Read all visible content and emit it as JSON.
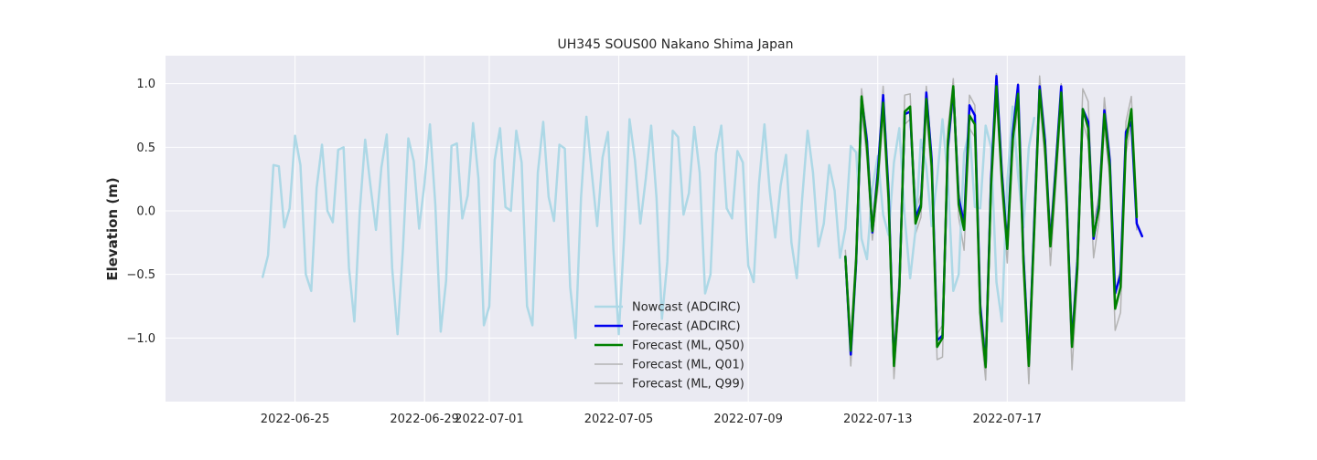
{
  "chart_data": {
    "type": "line",
    "title": "UH345 SOUS00 Nakano Shima Japan",
    "xlabel": "",
    "ylabel": "Elevation (m)",
    "xlim": [
      "2022-06-21T00:00",
      "2022-07-22T12:00"
    ],
    "ylim": [
      -1.5,
      1.22
    ],
    "x_ticks": [
      "2022-06-25",
      "2022-06-29",
      "2022-07-01",
      "2022-07-05",
      "2022-07-09",
      "2022-07-13",
      "2022-07-17"
    ],
    "y_ticks": [
      1.0,
      0.5,
      0.0,
      -0.5,
      -1.0
    ],
    "y_tick_labels": [
      "1.0",
      "0.5",
      "0.0",
      "−0.5",
      "−1.0"
    ],
    "grid": true,
    "legend_position": "center-bottom",
    "series": [
      {
        "name": "Nowcast (ADCIRC)",
        "color": "#add8e6",
        "start": "2022-06-24T00:00",
        "step_hours": 4,
        "values": [
          -0.52,
          -0.35,
          0.36,
          0.35,
          -0.13,
          0.02,
          0.59,
          0.36,
          -0.5,
          -0.63,
          0.18,
          0.52,
          0.0,
          -0.09,
          0.48,
          0.5,
          -0.45,
          -0.87,
          0.0,
          0.56,
          0.19,
          -0.15,
          0.34,
          0.6,
          -0.45,
          -0.97,
          -0.3,
          0.57,
          0.39,
          -0.14,
          0.22,
          0.68,
          0.05,
          -0.95,
          -0.55,
          0.51,
          0.53,
          -0.06,
          0.12,
          0.69,
          0.25,
          -0.9,
          -0.75,
          0.4,
          0.65,
          0.03,
          0.0,
          0.63,
          0.38,
          -0.75,
          -0.9,
          0.3,
          0.7,
          0.11,
          -0.08,
          0.52,
          0.49,
          -0.6,
          -1.0,
          0.1,
          0.74,
          0.3,
          -0.12,
          0.42,
          0.62,
          -0.3,
          -0.97,
          -0.2,
          0.72,
          0.4,
          -0.1,
          0.25,
          0.67,
          0.1,
          -0.85,
          -0.4,
          0.63,
          0.58,
          -0.03,
          0.14,
          0.66,
          0.3,
          -0.65,
          -0.5,
          0.45,
          0.67,
          0.02,
          -0.06,
          0.47,
          0.38,
          -0.43,
          -0.56,
          0.22,
          0.68,
          0.15,
          -0.21,
          0.2,
          0.44,
          -0.25,
          -0.53,
          0.1,
          0.63,
          0.3,
          -0.28,
          -0.1,
          0.36,
          0.16,
          -0.37,
          -0.14,
          0.51,
          0.46,
          -0.22,
          -0.38,
          0.18,
          0.43,
          -0.03,
          -0.19,
          0.38,
          0.65,
          -0.05,
          -0.53,
          -0.15,
          0.56,
          0.35,
          -0.12,
          0.25,
          0.72,
          0.25,
          -0.63,
          -0.5,
          0.45,
          0.64,
          0.03,
          0.02,
          0.67,
          0.5,
          -0.56,
          -0.87,
          0.22,
          0.82,
          0.28,
          -0.13,
          0.5,
          0.73
        ]
      },
      {
        "name": "Forecast (ADCIRC)",
        "color": "#0000ee",
        "start": "2022-07-12T00:00",
        "step_hours": 4,
        "values": [
          -0.36,
          -1.13,
          -0.4,
          0.88,
          0.55,
          -0.17,
          0.3,
          0.91,
          0.15,
          -1.2,
          -0.6,
          0.76,
          0.78,
          -0.05,
          0.05,
          0.93,
          0.4,
          -1.02,
          -0.98,
          0.5,
          0.96,
          0.1,
          -0.1,
          0.83,
          0.75,
          -0.75,
          -1.22,
          0.25,
          1.06,
          0.3,
          -0.28,
          0.6,
          0.99,
          -0.35,
          -1.2,
          -0.1,
          0.98,
          0.55,
          -0.26,
          0.35,
          0.98,
          0.1,
          -1.05,
          -0.4,
          0.8,
          0.7,
          -0.22,
          0.05,
          0.79,
          0.4,
          -0.65,
          -0.5,
          0.62,
          0.7,
          -0.1,
          -0.2
        ]
      },
      {
        "name": "Forecast (ML, Q50)",
        "color": "#008000",
        "start": "2022-07-12T00:00",
        "step_hours": 4,
        "values": [
          -0.36,
          -1.1,
          -0.38,
          0.9,
          0.5,
          -0.16,
          0.25,
          0.85,
          0.1,
          -1.22,
          -0.62,
          0.78,
          0.82,
          -0.1,
          0.03,
          0.88,
          0.35,
          -1.07,
          -1.0,
          0.55,
          0.98,
          0.05,
          -0.15,
          0.75,
          0.68,
          -0.8,
          -1.23,
          0.2,
          0.98,
          0.25,
          -0.3,
          0.55,
          0.92,
          -0.4,
          -1.22,
          -0.15,
          0.95,
          0.5,
          -0.28,
          0.3,
          0.93,
          0.05,
          -1.07,
          -0.45,
          0.8,
          0.65,
          -0.2,
          0.02,
          0.76,
          0.35,
          -0.77,
          -0.6,
          0.55,
          0.8,
          -0.05
        ]
      },
      {
        "name": "Forecast (ML, Q01)",
        "color": "#b3b3b3",
        "start": "2022-07-12T00:00",
        "step_hours": 4,
        "values": [
          -0.42,
          -1.22,
          -0.48,
          0.8,
          0.4,
          -0.23,
          0.15,
          0.75,
          0.0,
          -1.32,
          -0.72,
          0.68,
          0.72,
          -0.18,
          -0.05,
          0.78,
          0.25,
          -1.17,
          -1.15,
          0.45,
          0.88,
          -0.05,
          -0.31,
          0.65,
          0.58,
          -0.9,
          -1.33,
          0.1,
          0.88,
          0.15,
          -0.41,
          0.45,
          0.82,
          -0.5,
          -1.36,
          -0.25,
          0.85,
          0.4,
          -0.43,
          0.2,
          0.83,
          -0.05,
          -1.25,
          -0.55,
          0.7,
          0.55,
          -0.37,
          -0.08,
          0.66,
          0.25,
          -0.94,
          -0.8,
          0.45,
          0.7,
          -0.15
        ]
      },
      {
        "name": "Forecast (ML, Q99)",
        "color": "#b3b3b3",
        "start": "2022-07-12T00:00",
        "step_hours": 4,
        "values": [
          -0.31,
          -1.0,
          -0.28,
          0.96,
          0.6,
          -0.1,
          0.35,
          0.98,
          0.2,
          -1.1,
          -0.5,
          0.91,
          0.92,
          0.0,
          0.13,
          0.98,
          0.45,
          -0.97,
          -0.9,
          0.65,
          1.04,
          0.15,
          -0.05,
          0.91,
          0.83,
          -0.7,
          -1.1,
          0.3,
          1.08,
          0.35,
          -0.2,
          0.65,
          1.0,
          -0.3,
          -1.1,
          -0.05,
          1.06,
          0.6,
          -0.15,
          0.4,
          1.0,
          0.15,
          -0.95,
          -0.35,
          0.96,
          0.86,
          -0.1,
          0.12,
          0.89,
          0.45,
          -0.65,
          -0.45,
          0.7,
          0.9,
          0.05
        ]
      }
    ]
  }
}
